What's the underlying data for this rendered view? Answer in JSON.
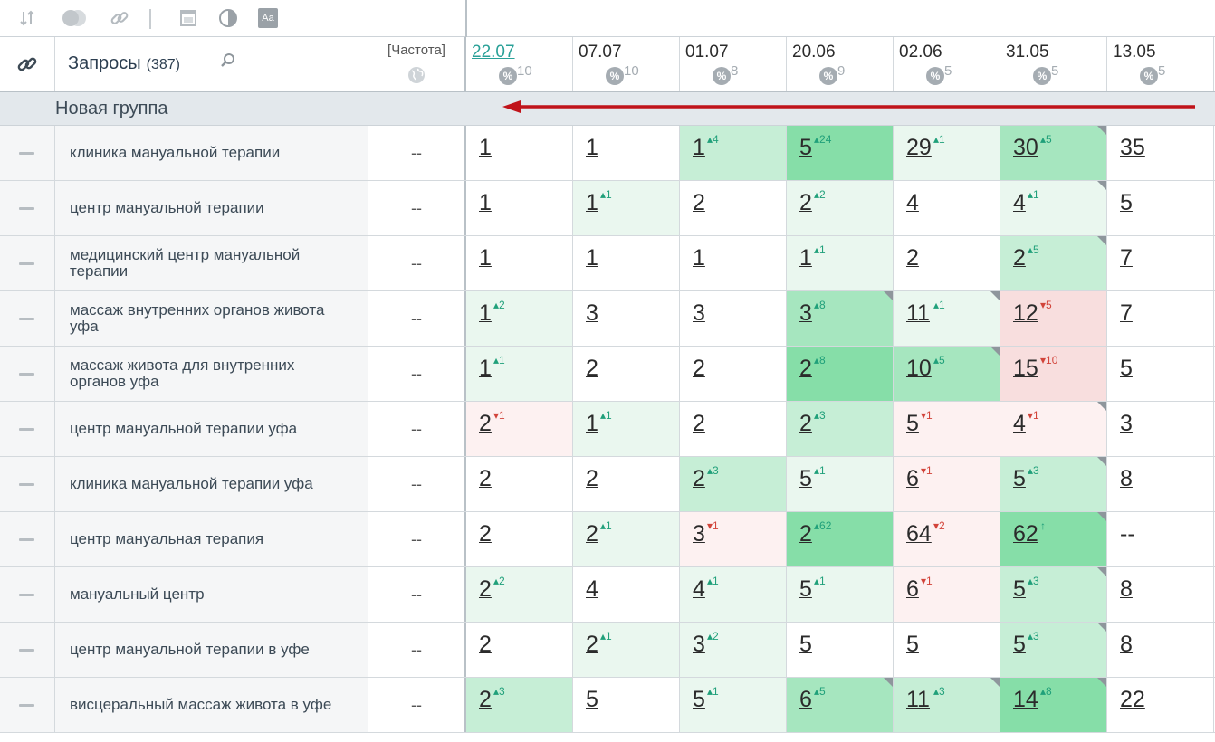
{
  "toolbar": {
    "icons": [
      "sort-icon",
      "toggle-icon",
      "link-icon",
      "calendar-icon",
      "contrast-icon",
      "font-size-icon"
    ],
    "font_label": "Aa"
  },
  "header": {
    "queries_label": "Запросы",
    "queries_count": "(387)",
    "freq_label": "[Частота]",
    "dates": [
      {
        "date": "22.07",
        "pct": "10",
        "active": true
      },
      {
        "date": "07.07",
        "pct": "10"
      },
      {
        "date": "01.07",
        "pct": "8"
      },
      {
        "date": "20.06",
        "pct": "9"
      },
      {
        "date": "02.06",
        "pct": "5"
      },
      {
        "date": "31.05",
        "pct": "5"
      },
      {
        "date": "13.05",
        "pct": "5"
      }
    ]
  },
  "group": {
    "label": "Новая группа"
  },
  "rows": [
    {
      "query": "клиника мануальной терапии",
      "freq": "--",
      "cells": [
        {
          "v": "1",
          "bg": "w"
        },
        {
          "v": "1",
          "bg": "w"
        },
        {
          "v": "1",
          "d": "4",
          "dir": "up",
          "bg": "g2"
        },
        {
          "v": "5",
          "d": "24",
          "dir": "up",
          "bg": "g4"
        },
        {
          "v": "29",
          "d": "1",
          "dir": "up",
          "bg": "g1"
        },
        {
          "v": "30",
          "d": "5",
          "dir": "up",
          "bg": "g3",
          "corner": true
        },
        {
          "v": "35",
          "bg": "w"
        }
      ]
    },
    {
      "query": "центр мануальной терапии",
      "freq": "--",
      "cells": [
        {
          "v": "1",
          "bg": "w"
        },
        {
          "v": "1",
          "d": "1",
          "dir": "up",
          "bg": "g1"
        },
        {
          "v": "2",
          "bg": "w"
        },
        {
          "v": "2",
          "d": "2",
          "dir": "up",
          "bg": "g1"
        },
        {
          "v": "4",
          "bg": "w"
        },
        {
          "v": "4",
          "d": "1",
          "dir": "up",
          "bg": "g1",
          "corner": true
        },
        {
          "v": "5",
          "bg": "w"
        }
      ]
    },
    {
      "query": "медицинский центр мануальной терапии",
      "freq": "--",
      "cells": [
        {
          "v": "1",
          "bg": "w"
        },
        {
          "v": "1",
          "bg": "w"
        },
        {
          "v": "1",
          "bg": "w"
        },
        {
          "v": "1",
          "d": "1",
          "dir": "up",
          "bg": "g1"
        },
        {
          "v": "2",
          "bg": "w"
        },
        {
          "v": "2",
          "d": "5",
          "dir": "up",
          "bg": "g2",
          "corner": true
        },
        {
          "v": "7",
          "bg": "w"
        }
      ]
    },
    {
      "query": "массаж внутренних органов живота уфа",
      "freq": "--",
      "cells": [
        {
          "v": "1",
          "d": "2",
          "dir": "up",
          "bg": "g1"
        },
        {
          "v": "3",
          "bg": "w"
        },
        {
          "v": "3",
          "bg": "w"
        },
        {
          "v": "3",
          "d": "8",
          "dir": "up",
          "bg": "g3",
          "corner": true
        },
        {
          "v": "11",
          "d": "1",
          "dir": "up",
          "bg": "g1",
          "corner": true
        },
        {
          "v": "12",
          "d": "5",
          "dir": "dn",
          "bg": "r2"
        },
        {
          "v": "7",
          "bg": "w"
        }
      ]
    },
    {
      "query": "массаж живота для внутренних органов уфа",
      "freq": "--",
      "cells": [
        {
          "v": "1",
          "d": "1",
          "dir": "up",
          "bg": "g1"
        },
        {
          "v": "2",
          "bg": "w"
        },
        {
          "v": "2",
          "bg": "w"
        },
        {
          "v": "2",
          "d": "8",
          "dir": "up",
          "bg": "g4"
        },
        {
          "v": "10",
          "d": "5",
          "dir": "up",
          "bg": "g3",
          "corner": true
        },
        {
          "v": "15",
          "d": "10",
          "dir": "dn",
          "bg": "r2"
        },
        {
          "v": "5",
          "bg": "w"
        }
      ]
    },
    {
      "query": "центр мануальной терапии уфа",
      "freq": "--",
      "cells": [
        {
          "v": "2",
          "d": "1",
          "dir": "dn",
          "bg": "r1"
        },
        {
          "v": "1",
          "d": "1",
          "dir": "up",
          "bg": "g1"
        },
        {
          "v": "2",
          "bg": "w"
        },
        {
          "v": "2",
          "d": "3",
          "dir": "up",
          "bg": "g2"
        },
        {
          "v": "5",
          "d": "1",
          "dir": "dn",
          "bg": "r1"
        },
        {
          "v": "4",
          "d": "1",
          "dir": "dn",
          "bg": "r1",
          "corner": true
        },
        {
          "v": "3",
          "bg": "w"
        }
      ]
    },
    {
      "query": "клиника мануальной терапии уфа",
      "freq": "--",
      "cells": [
        {
          "v": "2",
          "bg": "w"
        },
        {
          "v": "2",
          "bg": "w"
        },
        {
          "v": "2",
          "d": "3",
          "dir": "up",
          "bg": "g2"
        },
        {
          "v": "5",
          "d": "1",
          "dir": "up",
          "bg": "g1"
        },
        {
          "v": "6",
          "d": "1",
          "dir": "dn",
          "bg": "r1"
        },
        {
          "v": "5",
          "d": "3",
          "dir": "up",
          "bg": "g2",
          "corner": true
        },
        {
          "v": "8",
          "bg": "w"
        }
      ]
    },
    {
      "query": "центр мануальная терапия",
      "freq": "--",
      "cells": [
        {
          "v": "2",
          "bg": "w"
        },
        {
          "v": "2",
          "d": "1",
          "dir": "up",
          "bg": "g1"
        },
        {
          "v": "3",
          "d": "1",
          "dir": "dn",
          "bg": "r1"
        },
        {
          "v": "2",
          "d": "62",
          "dir": "up",
          "bg": "g4"
        },
        {
          "v": "64",
          "d": "2",
          "dir": "dn",
          "bg": "r1"
        },
        {
          "v": "62",
          "d": "↑",
          "dir": "up",
          "bg": "g4",
          "corner": true
        },
        {
          "v": "--",
          "bg": "w",
          "plain": true
        }
      ]
    },
    {
      "query": "мануальный центр",
      "freq": "--",
      "cells": [
        {
          "v": "2",
          "d": "2",
          "dir": "up",
          "bg": "g1"
        },
        {
          "v": "4",
          "bg": "w"
        },
        {
          "v": "4",
          "d": "1",
          "dir": "up",
          "bg": "g1"
        },
        {
          "v": "5",
          "d": "1",
          "dir": "up",
          "bg": "g1"
        },
        {
          "v": "6",
          "d": "1",
          "dir": "dn",
          "bg": "r1"
        },
        {
          "v": "5",
          "d": "3",
          "dir": "up",
          "bg": "g2",
          "corner": true
        },
        {
          "v": "8",
          "bg": "w"
        }
      ]
    },
    {
      "query": "центр мануальной терапии в уфе",
      "freq": "--",
      "cells": [
        {
          "v": "2",
          "bg": "w"
        },
        {
          "v": "2",
          "d": "1",
          "dir": "up",
          "bg": "g1"
        },
        {
          "v": "3",
          "d": "2",
          "dir": "up",
          "bg": "g1"
        },
        {
          "v": "5",
          "bg": "w"
        },
        {
          "v": "5",
          "bg": "w"
        },
        {
          "v": "5",
          "d": "3",
          "dir": "up",
          "bg": "g2",
          "corner": true
        },
        {
          "v": "8",
          "bg": "w"
        }
      ]
    },
    {
      "query": "висцеральный массаж живота в уфе",
      "freq": "--",
      "cells": [
        {
          "v": "2",
          "d": "3",
          "dir": "up",
          "bg": "g2"
        },
        {
          "v": "5",
          "bg": "w"
        },
        {
          "v": "5",
          "d": "1",
          "dir": "up",
          "bg": "g1"
        },
        {
          "v": "6",
          "d": "5",
          "dir": "up",
          "bg": "g3",
          "corner": true
        },
        {
          "v": "11",
          "d": "3",
          "dir": "up",
          "bg": "g2",
          "corner": true
        },
        {
          "v": "14",
          "d": "8",
          "dir": "up",
          "bg": "g4",
          "corner": true
        },
        {
          "v": "22",
          "bg": "w"
        }
      ]
    }
  ]
}
